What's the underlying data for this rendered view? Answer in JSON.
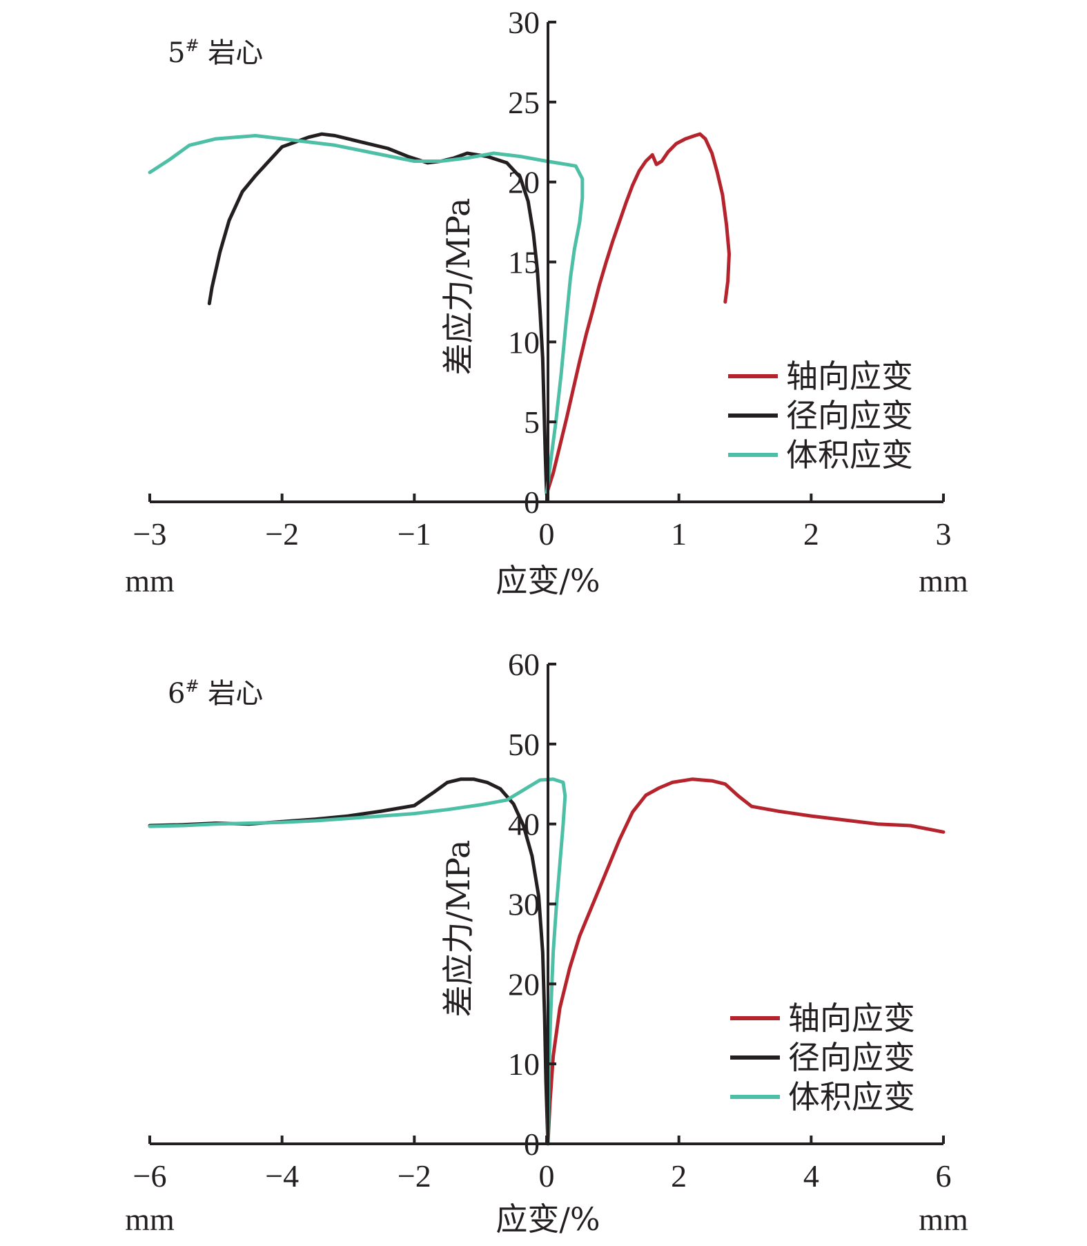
{
  "colors": {
    "axial": "#b5242c",
    "radial": "#231f20",
    "volumetric": "#4dbfa6",
    "axis": "#231f20"
  },
  "chart_data": [
    {
      "type": "line",
      "panel_label": "5",
      "panel_label_sup": "#",
      "panel_label_suffix": " 岩心",
      "xlabel": "应变/%",
      "ylabel": "差应力/MPa",
      "x_unit_left": "mm",
      "x_unit_right": "mm",
      "xlim": [
        -3,
        3
      ],
      "ylim": [
        0,
        30
      ],
      "x_ticks": [
        -3,
        -2,
        -1,
        0,
        1,
        2,
        3
      ],
      "x_tick_labels": [
        "−3",
        "−2",
        "−1",
        "0",
        "1",
        "2",
        "3"
      ],
      "y_ticks": [
        0,
        5,
        10,
        15,
        20,
        25,
        30
      ],
      "y_tick_labels": [
        "0",
        "5",
        "10",
        "15",
        "20",
        "25",
        "30"
      ],
      "legend_position": "bottom-right",
      "series": [
        {
          "name": "轴向应变",
          "color_key": "axial",
          "points": [
            [
              0.0,
              0.5
            ],
            [
              0.05,
              1.8
            ],
            [
              0.1,
              3.5
            ],
            [
              0.15,
              5.2
            ],
            [
              0.2,
              7.0
            ],
            [
              0.25,
              8.8
            ],
            [
              0.3,
              10.5
            ],
            [
              0.35,
              12.0
            ],
            [
              0.4,
              13.6
            ],
            [
              0.45,
              15.0
            ],
            [
              0.5,
              16.3
            ],
            [
              0.55,
              17.5
            ],
            [
              0.6,
              18.7
            ],
            [
              0.65,
              19.8
            ],
            [
              0.7,
              20.7
            ],
            [
              0.75,
              21.3
            ],
            [
              0.8,
              21.7
            ],
            [
              0.83,
              21.1
            ],
            [
              0.87,
              21.3
            ],
            [
              0.92,
              21.9
            ],
            [
              0.98,
              22.4
            ],
            [
              1.05,
              22.7
            ],
            [
              1.12,
              22.9
            ],
            [
              1.16,
              23.0
            ],
            [
              1.2,
              22.7
            ],
            [
              1.25,
              21.8
            ],
            [
              1.29,
              20.6
            ],
            [
              1.33,
              19.2
            ],
            [
              1.36,
              17.3
            ],
            [
              1.38,
              15.5
            ],
            [
              1.37,
              13.8
            ],
            [
              1.35,
              12.5
            ]
          ]
        },
        {
          "name": "径向应变",
          "color_key": "radial",
          "points": [
            [
              0.0,
              0.5
            ],
            [
              -0.01,
              3.0
            ],
            [
              -0.02,
              6.0
            ],
            [
              -0.03,
              9.0
            ],
            [
              -0.05,
              12.0
            ],
            [
              -0.07,
              14.5
            ],
            [
              -0.1,
              16.8
            ],
            [
              -0.14,
              18.8
            ],
            [
              -0.2,
              20.3
            ],
            [
              -0.3,
              21.2
            ],
            [
              -0.45,
              21.6
            ],
            [
              -0.6,
              21.8
            ],
            [
              -0.7,
              21.5
            ],
            [
              -0.8,
              21.3
            ],
            [
              -0.9,
              21.2
            ],
            [
              -1.05,
              21.6
            ],
            [
              -1.2,
              22.1
            ],
            [
              -1.4,
              22.5
            ],
            [
              -1.6,
              22.9
            ],
            [
              -1.7,
              23.0
            ],
            [
              -1.8,
              22.8
            ],
            [
              -1.9,
              22.5
            ],
            [
              -2.0,
              22.2
            ],
            [
              -2.1,
              21.3
            ],
            [
              -2.2,
              20.4
            ],
            [
              -2.3,
              19.4
            ],
            [
              -2.4,
              17.6
            ],
            [
              -2.47,
              15.6
            ],
            [
              -2.53,
              13.4
            ],
            [
              -2.55,
              12.4
            ]
          ]
        },
        {
          "name": "体积应变",
          "color_key": "volumetric",
          "points": [
            [
              0.0,
              0.5
            ],
            [
              0.03,
              2.5
            ],
            [
              0.07,
              5.0
            ],
            [
              0.11,
              8.0
            ],
            [
              0.15,
              11.5
            ],
            [
              0.18,
              14.0
            ],
            [
              0.21,
              15.8
            ],
            [
              0.25,
              17.5
            ],
            [
              0.27,
              19.0
            ],
            [
              0.27,
              20.2
            ],
            [
              0.22,
              21.0
            ],
            [
              0.15,
              21.1
            ],
            [
              0.0,
              21.3
            ],
            [
              -0.2,
              21.6
            ],
            [
              -0.4,
              21.8
            ],
            [
              -0.6,
              21.5
            ],
            [
              -0.8,
              21.3
            ],
            [
              -1.0,
              21.3
            ],
            [
              -1.3,
              21.8
            ],
            [
              -1.6,
              22.3
            ],
            [
              -1.9,
              22.6
            ],
            [
              -2.2,
              22.9
            ],
            [
              -2.5,
              22.7
            ],
            [
              -2.7,
              22.3
            ],
            [
              -2.85,
              21.4
            ],
            [
              -3.0,
              20.6
            ]
          ]
        }
      ]
    },
    {
      "type": "line",
      "panel_label": "6",
      "panel_label_sup": "#",
      "panel_label_suffix": " 岩心",
      "xlabel": "应变/%",
      "ylabel": "差应力/MPa",
      "x_unit_left": "mm",
      "x_unit_right": "mm",
      "xlim": [
        -6,
        6
      ],
      "ylim": [
        0,
        60
      ],
      "x_ticks": [
        -6,
        -4,
        -2,
        0,
        2,
        4,
        6
      ],
      "x_tick_labels": [
        "−6",
        "−4",
        "−2",
        "0",
        "2",
        "4",
        "6"
      ],
      "y_ticks": [
        0,
        10,
        20,
        30,
        40,
        50,
        60
      ],
      "y_tick_labels": [
        "0",
        "10",
        "20",
        "30",
        "40",
        "50",
        "60"
      ],
      "legend_position": "bottom-right",
      "series": [
        {
          "name": "轴向应变",
          "color_key": "axial",
          "points": [
            [
              0.02,
              0.0
            ],
            [
              0.05,
              5.0
            ],
            [
              0.1,
              11.0
            ],
            [
              0.2,
              17.0
            ],
            [
              0.35,
              22.0
            ],
            [
              0.5,
              26.0
            ],
            [
              0.7,
              30.0
            ],
            [
              0.9,
              34.0
            ],
            [
              1.1,
              38.0
            ],
            [
              1.3,
              41.5
            ],
            [
              1.5,
              43.6
            ],
            [
              1.7,
              44.5
            ],
            [
              1.9,
              45.2
            ],
            [
              2.2,
              45.6
            ],
            [
              2.5,
              45.4
            ],
            [
              2.7,
              45.0
            ],
            [
              2.9,
              43.5
            ],
            [
              3.1,
              42.2
            ],
            [
              3.5,
              41.6
            ],
            [
              4.0,
              41.0
            ],
            [
              4.5,
              40.5
            ],
            [
              5.0,
              40.0
            ],
            [
              5.5,
              39.8
            ],
            [
              6.0,
              39.0
            ]
          ]
        },
        {
          "name": "径向应变",
          "color_key": "radial",
          "points": [
            [
              0.02,
              0.0
            ],
            [
              -0.01,
              8.0
            ],
            [
              -0.03,
              16.0
            ],
            [
              -0.06,
              24.0
            ],
            [
              -0.12,
              31.0
            ],
            [
              -0.22,
              36.0
            ],
            [
              -0.35,
              39.8
            ],
            [
              -0.5,
              42.5
            ],
            [
              -0.7,
              44.4
            ],
            [
              -0.9,
              45.2
            ],
            [
              -1.1,
              45.6
            ],
            [
              -1.3,
              45.6
            ],
            [
              -1.5,
              45.2
            ],
            [
              -1.7,
              44.0
            ],
            [
              -2.0,
              42.3
            ],
            [
              -2.5,
              41.6
            ],
            [
              -3.0,
              41.0
            ],
            [
              -3.5,
              40.6
            ],
            [
              -4.0,
              40.3
            ],
            [
              -4.5,
              40.0
            ],
            [
              -5.0,
              40.1
            ],
            [
              -5.5,
              39.9
            ],
            [
              -6.0,
              39.8
            ]
          ]
        },
        {
          "name": "体积应变",
          "color_key": "volumetric",
          "points": [
            [
              0.02,
              0.0
            ],
            [
              0.03,
              8.0
            ],
            [
              0.06,
              16.0
            ],
            [
              0.1,
              24.0
            ],
            [
              0.15,
              30.0
            ],
            [
              0.2,
              35.0
            ],
            [
              0.25,
              40.0
            ],
            [
              0.28,
              43.5
            ],
            [
              0.25,
              45.2
            ],
            [
              0.1,
              45.6
            ],
            [
              -0.1,
              45.5
            ],
            [
              -0.3,
              44.5
            ],
            [
              -0.6,
              43.0
            ],
            [
              -1.0,
              42.4
            ],
            [
              -1.5,
              41.8
            ],
            [
              -2.0,
              41.3
            ],
            [
              -2.5,
              41.0
            ],
            [
              -3.0,
              40.7
            ],
            [
              -3.5,
              40.4
            ],
            [
              -4.0,
              40.2
            ],
            [
              -4.5,
              40.1
            ],
            [
              -5.0,
              40.0
            ],
            [
              -5.5,
              39.8
            ],
            [
              -6.0,
              39.7
            ]
          ]
        }
      ]
    }
  ]
}
